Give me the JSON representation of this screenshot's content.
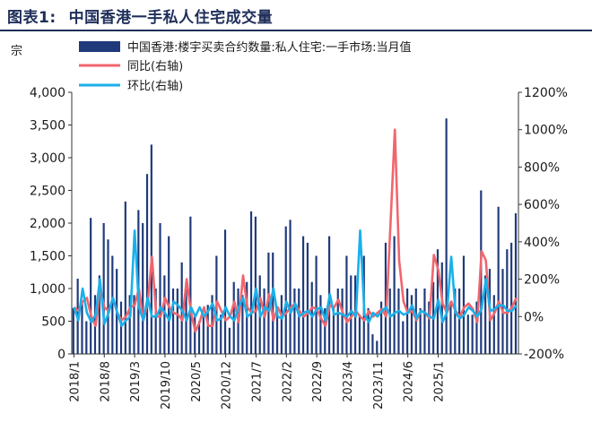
{
  "title": {
    "label": "图表1:",
    "text": "中国香港一手私人住宅成交量"
  },
  "chart_data": {
    "type": "bar+line",
    "left_unit": "宗",
    "left_axis": {
      "min": 0,
      "max": 4000,
      "ticks": [
        "0",
        "500",
        "1,000",
        "1,500",
        "2,000",
        "2,500",
        "3,000",
        "3,500",
        "4,000"
      ]
    },
    "right_axis": {
      "min": -200,
      "max": 1200,
      "ticks": [
        "-200%",
        "0%",
        "200%",
        "400%",
        "600%",
        "800%",
        "1000%",
        "1200%"
      ]
    },
    "x_tick_labels": [
      "2018/1",
      "2018/8",
      "2019/3",
      "2019/10",
      "2020/5",
      "2020/12",
      "2021/7",
      "2022/2",
      "2022/9",
      "2023/4",
      "2023/11",
      "2024/6",
      "2025/1"
    ],
    "colors": {
      "bars": "#1f3a7a",
      "yoy": "#f0666d",
      "mom": "#1ab0ea"
    },
    "series": [
      {
        "name": "中国香港:楼宇买卖合约数量:私人住宅:一手市场:当月值",
        "axis": "left",
        "kind": "bar",
        "values": [
          700,
          1150,
          800,
          500,
          2080,
          900,
          1200,
          2000,
          1750,
          1500,
          1300,
          800,
          2330,
          900,
          900,
          2200,
          2000,
          2750,
          3200,
          1000,
          2000,
          1200,
          1800,
          1000,
          1000,
          1400,
          1100,
          2100,
          600,
          500,
          600,
          750,
          900,
          1500,
          600,
          1900,
          400,
          1100,
          1000,
          900,
          1100,
          2180,
          2100,
          1200,
          1000,
          1550,
          1550,
          600,
          900,
          1950,
          2050,
          1000,
          1000,
          1800,
          1700,
          1100,
          1500,
          900,
          700,
          1800,
          700,
          1000,
          1000,
          1500,
          1200,
          1200,
          600,
          1500,
          700,
          300,
          200,
          800,
          1700,
          1000,
          1800,
          1000,
          500,
          1000,
          900,
          1000,
          700,
          1000,
          800,
          1100,
          1600,
          1400,
          3600,
          800,
          1000,
          1000,
          1500,
          600,
          600,
          800,
          2500,
          1200,
          1300,
          900,
          2250,
          1300,
          1600,
          1700,
          2150
        ]
      },
      {
        "name": "同比(右轴)",
        "axis": "right",
        "kind": "line",
        "values": [
          50,
          30,
          80,
          100,
          0,
          -50,
          150,
          50,
          30,
          100,
          20,
          -20,
          0,
          50,
          60,
          150,
          -20,
          70,
          320,
          0,
          0,
          100,
          50,
          20,
          10,
          -20,
          200,
          20,
          -80,
          -30,
          50,
          -50,
          -50,
          80,
          30,
          -20,
          0,
          80,
          -30,
          220,
          50,
          20,
          30,
          100,
          0,
          120,
          -20,
          50,
          0,
          20,
          50,
          70,
          30,
          0,
          20,
          50,
          40,
          -10,
          -50,
          60,
          50,
          90,
          20,
          -30,
          0,
          30,
          0,
          -20,
          30,
          0,
          20,
          40,
          0,
          500,
          1000,
          300,
          80,
          20,
          30,
          -20,
          30,
          20,
          -10,
          330,
          250,
          70,
          20,
          80,
          30,
          0,
          50,
          70,
          40,
          -30,
          350,
          300,
          -20,
          20,
          80,
          20,
          20,
          50,
          100
        ]
      },
      {
        "name": "环比(右轴)",
        "axis": "right",
        "kind": "line",
        "values": [
          50,
          -20,
          150,
          20,
          -30,
          10,
          200,
          -40,
          20,
          100,
          20,
          -50,
          -20,
          0,
          460,
          50,
          -20,
          100,
          0,
          0,
          50,
          20,
          -20,
          80,
          60,
          30,
          -20,
          50,
          0,
          50,
          0,
          30,
          70,
          -20,
          -10,
          50,
          0,
          -20,
          50,
          100,
          0,
          20,
          150,
          0,
          50,
          30,
          150,
          0,
          -10,
          80,
          20,
          70,
          0,
          20,
          30,
          0,
          40,
          50,
          -20,
          120,
          10,
          20,
          10,
          0,
          30,
          0,
          460,
          10,
          -30,
          20,
          0,
          30,
          50,
          0,
          20,
          30,
          10,
          20,
          60,
          -10,
          30,
          20,
          0,
          -10,
          90,
          -30,
          20,
          320,
          20,
          -10,
          10,
          50,
          30,
          0,
          40,
          200,
          30,
          40,
          60,
          60,
          30,
          30,
          60
        ]
      }
    ]
  }
}
